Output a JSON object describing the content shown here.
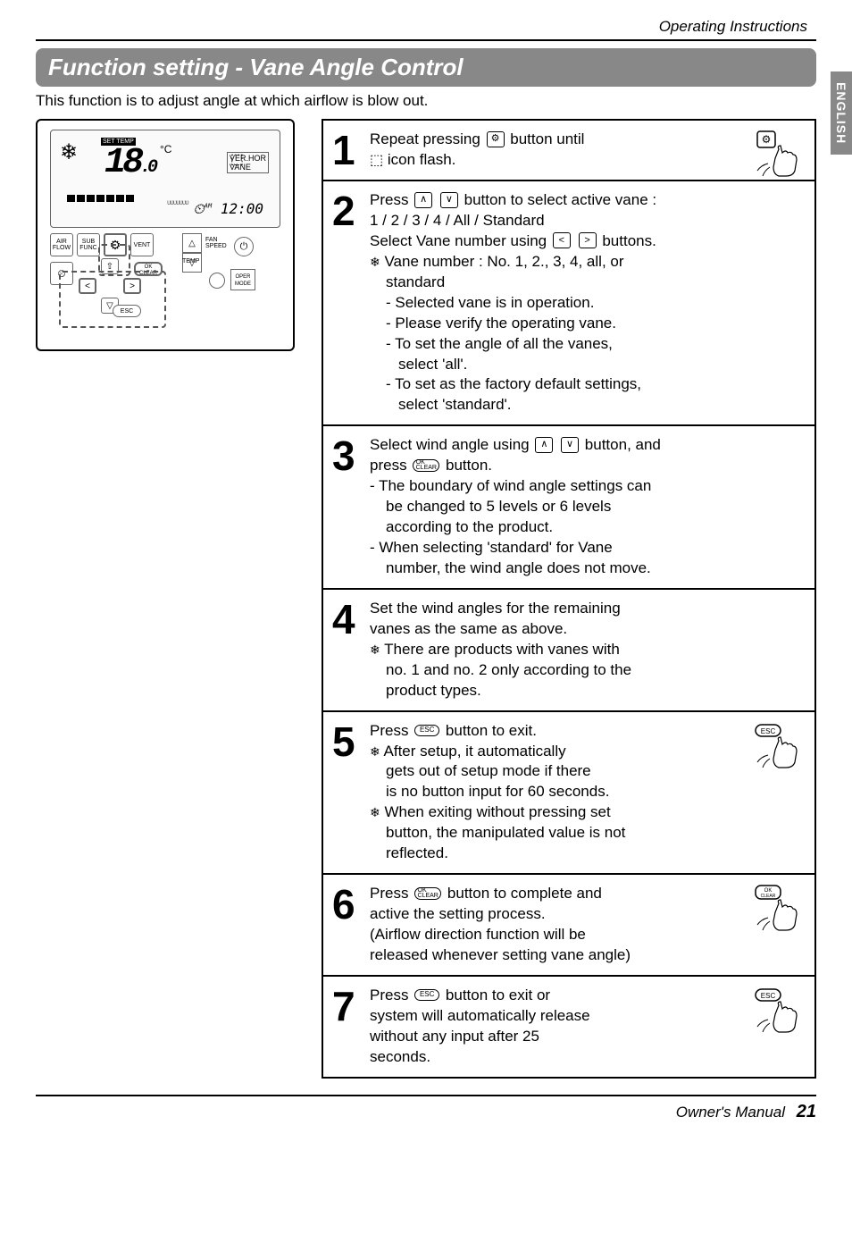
{
  "header": {
    "right": "Operating Instructions"
  },
  "sideTab": "ENGLISH",
  "title": "Function setting - Vane Angle Control",
  "intro": "This function is to adjust angle at which airflow is blow out.",
  "remote": {
    "setTempLabel": "SET TEMP",
    "temp": "18",
    "tempDec": ".0",
    "tempUnit": "°C",
    "vaneLabel": "VER. HOR.\nVANE",
    "clock": "12:00",
    "clockAmPm": "AM",
    "dotted": "ᴜᴜᴜᴜᴜᴜᴜ",
    "buttons": {
      "airflow": "AIR\nFLOW",
      "subfunc": "SUB\nFUNC",
      "gear": "⚙",
      "vent": "VENT",
      "fanSpeed": "FAN\nSPEED",
      "temp": "TEMP",
      "operMode": "OPER\nMODE",
      "ok": "OK\nCLEAR",
      "esc": "ESC"
    }
  },
  "steps": [
    {
      "n": "1",
      "lines": [
        "Repeat pressing {gear} button until {gearbig}",
        "{vane} icon flash."
      ],
      "hand": "gear"
    },
    {
      "n": "2",
      "lines": [
        "Press {up} {dn} button to select active vane :",
        "1 / 2 / 3 / 4 / All / Standard",
        "Select Vane number using {lt} {rt} buttons.",
        "{snow} Vane number : No. 1, 2., 3, 4, all, or",
        "   standard",
        "   - Selected vane is in operation.",
        "   - Please verify the operating vane.",
        "   - To set the angle of all the vanes,",
        "     select 'all'.",
        "   - To set as the factory default settings,",
        "     select 'standard'."
      ]
    },
    {
      "n": "3",
      "lines": [
        "Select wind angle using {up} {dn} button, and",
        "press {ok} button.",
        "- The boundary of wind angle settings can",
        "  be changed to 5 levels or 6 levels",
        "  according to the product.",
        "- When selecting 'standard' for Vane",
        "  number, the wind angle does not move."
      ]
    },
    {
      "n": "4",
      "lines": [
        "Set the wind angles for the remaining",
        "vanes as the same as above.",
        "{snow} There are products with vanes with",
        "   no. 1 and no. 2 only according to the",
        "   product types."
      ]
    },
    {
      "n": "5",
      "lines": [
        "Press {esc} button to exit.",
        "{snow} After setup, it automatically",
        "   gets out of setup mode if there",
        "   is no button input for 60 seconds.",
        "{snow} When exiting without pressing set",
        "   button, the manipulated value is not",
        "   reflected."
      ],
      "hand": "esc"
    },
    {
      "n": "6",
      "lines": [
        "Press {ok} button to complete and {okbig}",
        "active the setting process.",
        "(Airflow direction function will be",
        "released whenever setting vane angle)"
      ],
      "hand": "ok"
    },
    {
      "n": "7",
      "lines": [
        "Press {esc} button to exit or",
        "system will automatically release",
        "without any input after 25",
        "seconds."
      ],
      "hand": "esc"
    }
  ],
  "footer": {
    "label": "Owner's Manual",
    "page": "21"
  },
  "colors": {
    "titleBg": "#888888",
    "border": "#000000"
  }
}
